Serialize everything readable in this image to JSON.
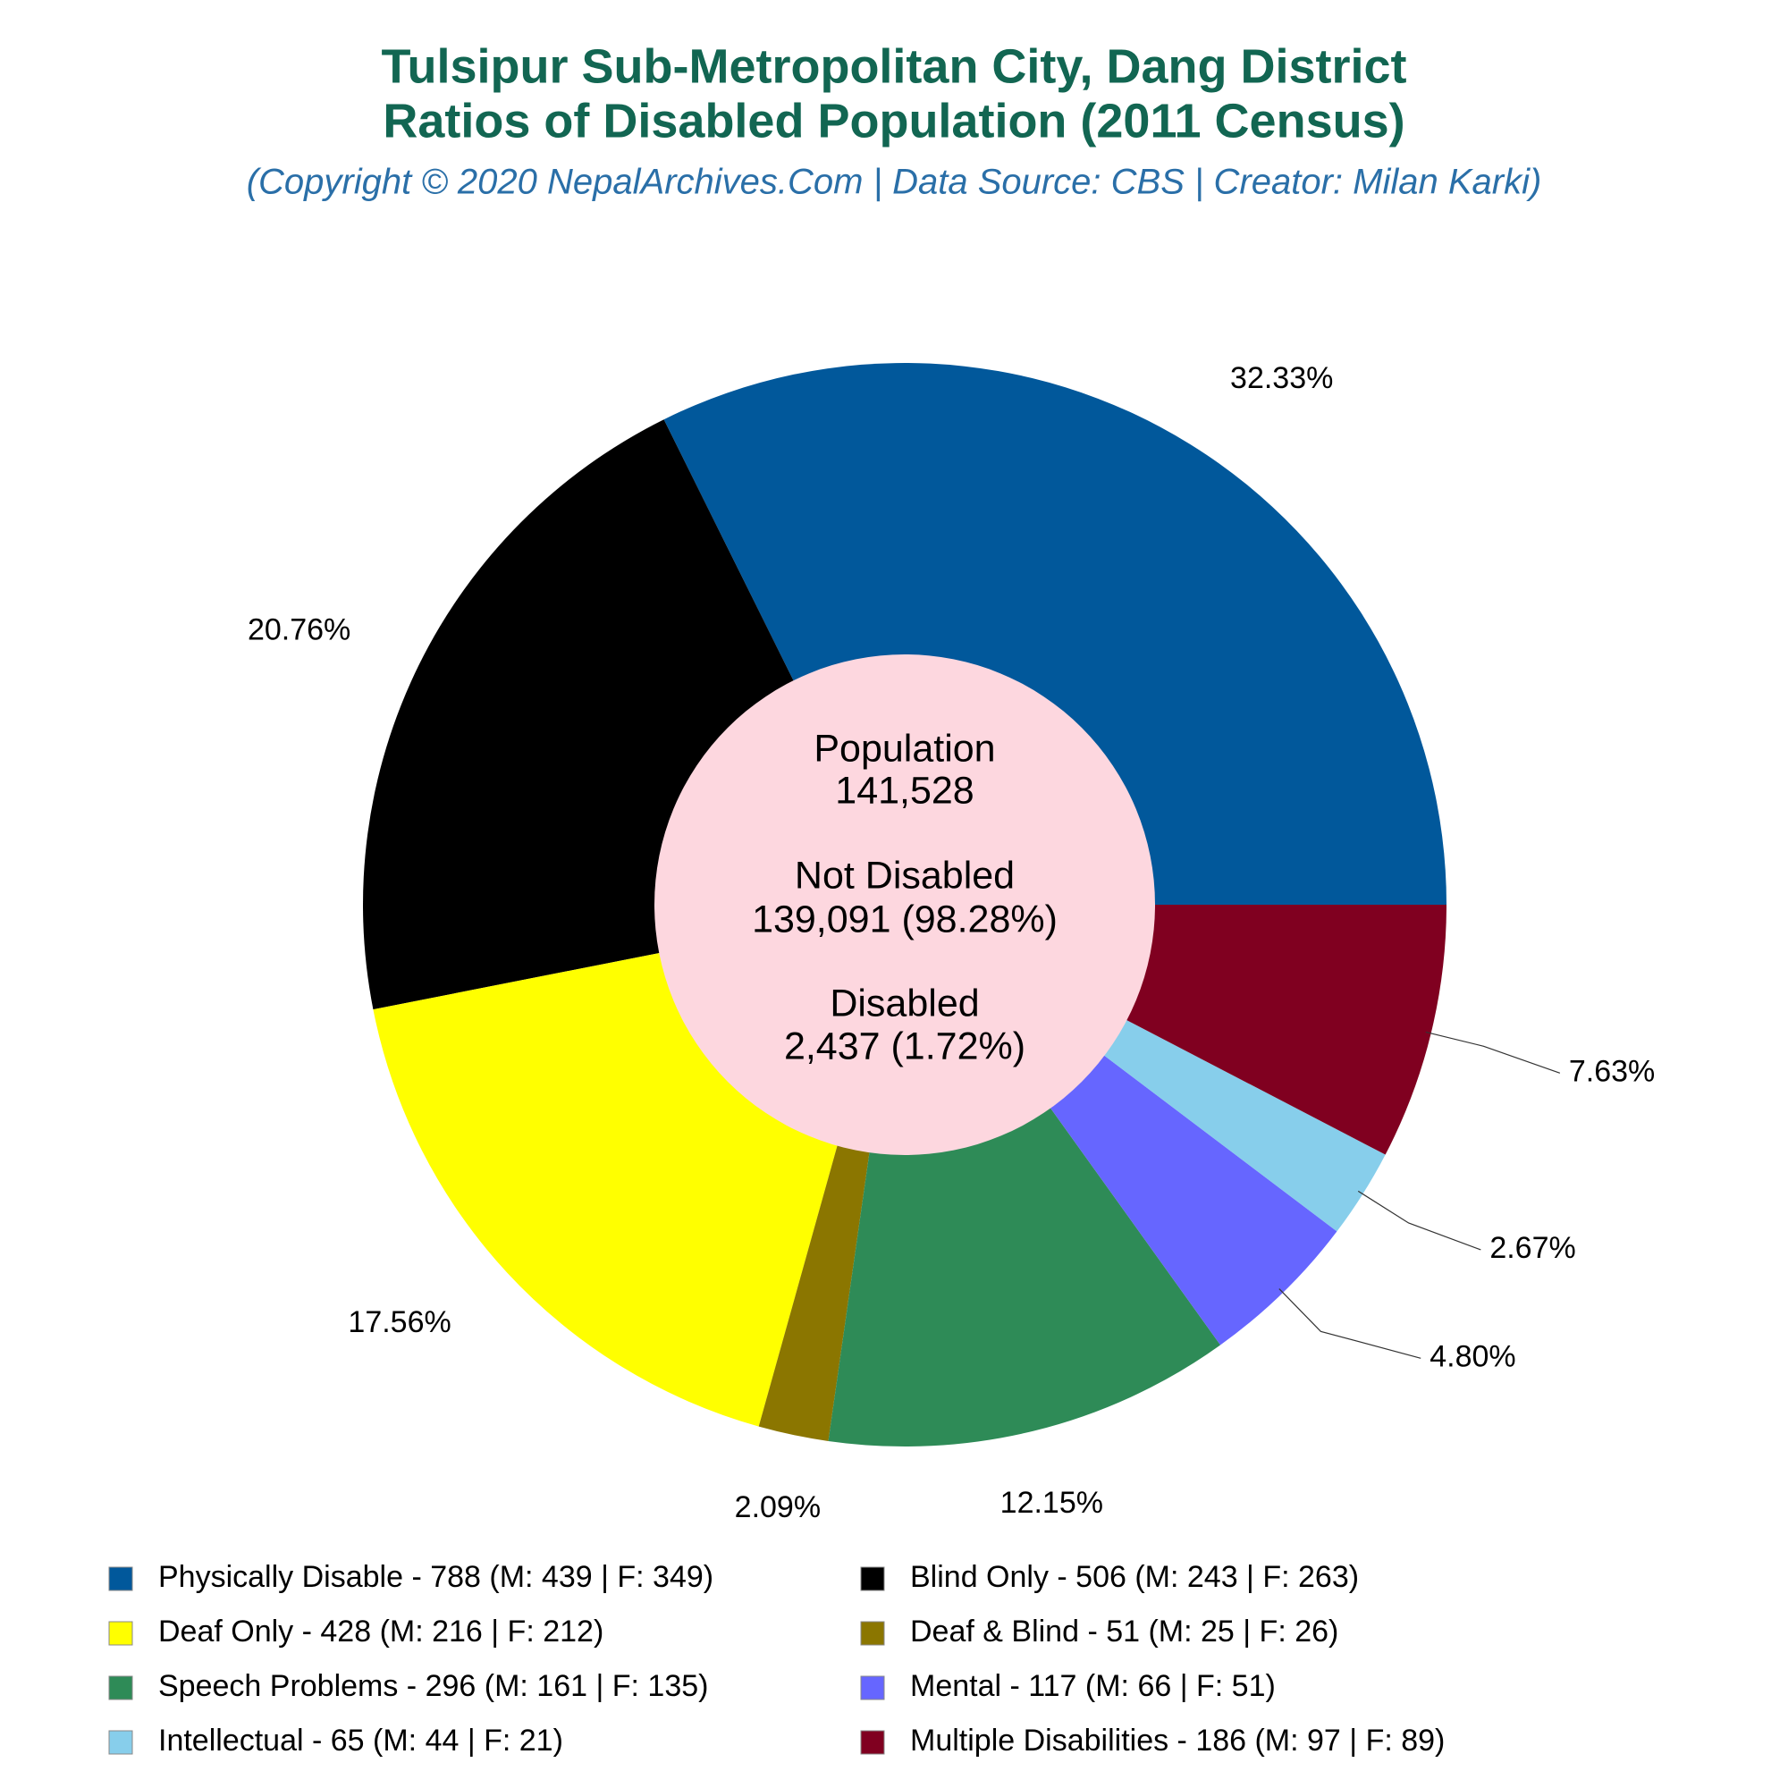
{
  "chart_data": {
    "type": "pie",
    "title": [
      "Tulsipur Sub-Metropolitan City, Dang District",
      "Ratios of Disabled Population (2011 Census)"
    ],
    "subtitle": "(Copyright © 2020 NepalArchives.Com | Data Source: CBS | Creator: Milan Karki)",
    "categories": [
      "Physically Disable - 788 (M: 439 | F: 349)",
      "Blind Only - 506 (M: 243 | F: 263)",
      "Deaf Only - 428 (M: 216 | F: 212)",
      "Deaf & Blind - 51 (M: 25 | F: 26)",
      "Speech Problems - 296 (M: 161 | F: 135)",
      "Mental - 117 (M: 66 | F: 51)",
      "Intellectual - 65 (M: 44 | F: 21)",
      "Multiple Disabilities - 186 (M: 97 | F: 89)"
    ],
    "values": [
      32.33,
      20.76,
      17.56,
      2.09,
      12.15,
      4.8,
      2.67,
      7.63
    ],
    "value_labels": [
      "32.33%",
      "20.76%",
      "17.56%",
      "2.09%",
      "12.15%",
      "4.80%",
      "2.67%",
      "7.63%"
    ],
    "colors": [
      "#01589b",
      "#000000",
      "#ffff00",
      "#8b7600",
      "#2e8b57",
      "#6666ff",
      "#87ceeb",
      "#800020"
    ],
    "center_text": [
      "Population",
      "141,528",
      "Not Disabled",
      "139,091 (98.28%)",
      "Disabled",
      "2,437 (1.72%)"
    ],
    "center_color": "#fdd7df"
  }
}
